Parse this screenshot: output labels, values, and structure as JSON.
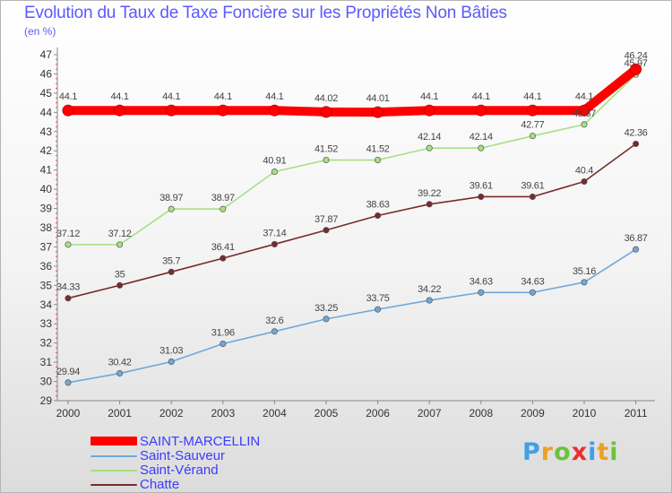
{
  "title": "Evolution du Taux de Taxe Foncière sur les Propriétés Non Bâties",
  "unit": "(en %)",
  "logo": {
    "chars": [
      "P",
      "r",
      "o",
      "x",
      "i",
      "t",
      "i"
    ],
    "colors": [
      "#3fa0e8",
      "#f0a020",
      "#6cc23a",
      "#e83030",
      "#3fa0e8",
      "#f0a020",
      "#6cc23a"
    ]
  },
  "chart_data": {
    "type": "line",
    "title": "Evolution du Taux de Taxe Foncière sur les Propriétés Non Bâties",
    "ylabel": "(en %)",
    "xlabel": "",
    "ylim": [
      29,
      47
    ],
    "yticks": [
      29,
      30,
      31,
      32,
      33,
      34,
      35,
      36,
      37,
      38,
      39,
      40,
      41,
      42,
      43,
      44,
      45,
      46,
      47
    ],
    "grid": false,
    "legend": "bottom-left",
    "x": [
      "2000",
      "2001",
      "2002",
      "2003",
      "2004",
      "2005",
      "2006",
      "2007",
      "2008",
      "2009",
      "2010",
      "2011"
    ],
    "series": [
      {
        "name": "SAINT-MARCELLIN",
        "color": "#ff0000",
        "values": [
          44.1,
          44.1,
          44.1,
          44.1,
          44.1,
          44.02,
          44.01,
          44.1,
          44.1,
          44.1,
          44.1,
          46.24
        ],
        "labels": [
          "44.1",
          "44.1",
          "44.1",
          "44.1",
          "44.1",
          "44.02",
          "44.01",
          "44.1",
          "44.1",
          "44.1",
          "44.1",
          "46.24"
        ]
      },
      {
        "name": "Saint-Sauveur",
        "color": "#6fa8dc",
        "values": [
          29.94,
          30.42,
          31.03,
          31.96,
          32.6,
          33.25,
          33.75,
          34.22,
          34.63,
          34.63,
          35.16,
          36.87
        ],
        "labels": [
          "29.94",
          "30.42",
          "31.03",
          "31.96",
          "32.6",
          "33.25",
          "33.75",
          "34.22",
          "34.63",
          "34.63",
          "35.16",
          "36.87"
        ]
      },
      {
        "name": "Saint-Vérand",
        "color": "#a6e080",
        "values": [
          37.12,
          37.12,
          38.97,
          38.97,
          40.91,
          41.52,
          41.52,
          42.14,
          42.14,
          42.77,
          43.37,
          45.97
        ],
        "labels": [
          "37.12",
          "37.12",
          "38.97",
          "38.97",
          "40.91",
          "41.52",
          "41.52",
          "42.14",
          "42.14",
          "42.77",
          "43.37",
          "45.97"
        ]
      },
      {
        "name": "Chatte",
        "color": "#7a2a2a",
        "values": [
          34.33,
          35,
          35.7,
          36.41,
          37.14,
          37.87,
          38.63,
          39.22,
          39.61,
          39.61,
          40.4,
          42.36
        ],
        "labels": [
          "34.33",
          "35",
          "35.7",
          "36.41",
          "37.14",
          "37.87",
          "38.63",
          "39.22",
          "39.61",
          "39.61",
          "40.4",
          "42.36"
        ]
      }
    ]
  }
}
